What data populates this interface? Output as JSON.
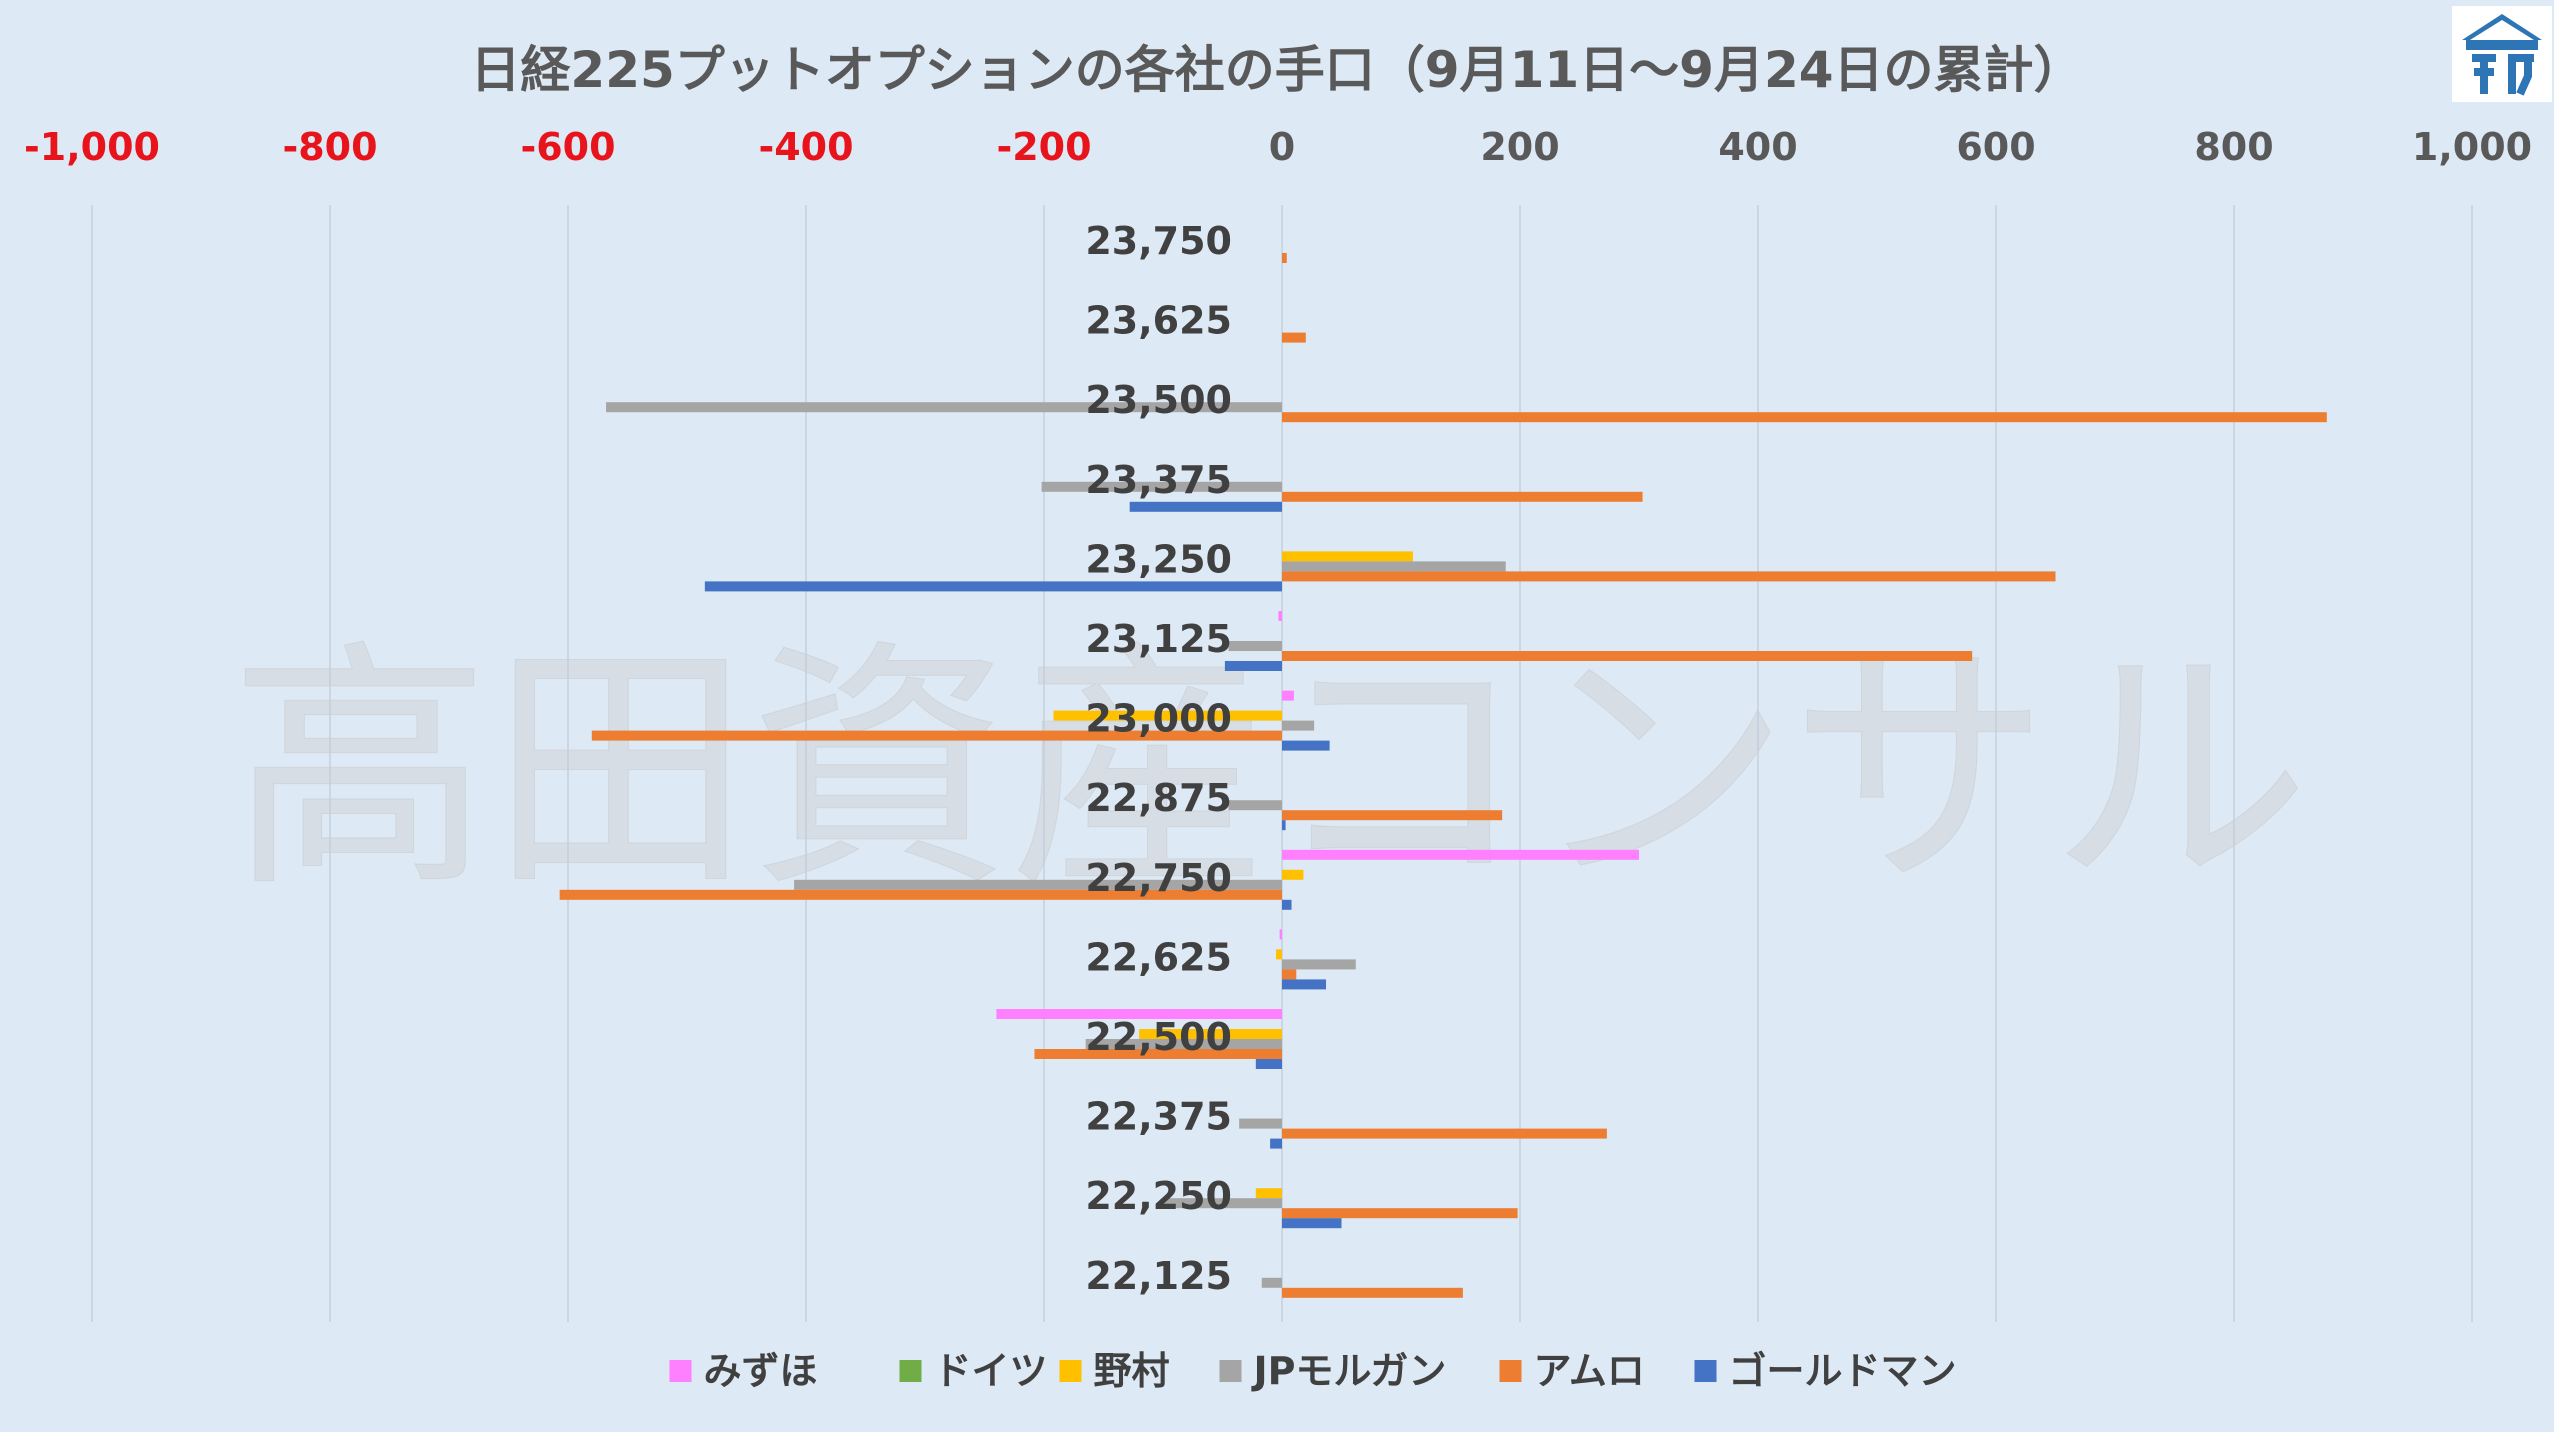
{
  "colors": {
    "mizuho": "#ff80ff",
    "deutsche": "#70ad47",
    "nomura": "#ffc000",
    "jpmorgan": "#a5a5a5",
    "amro": "#ed7d31",
    "goldman": "#4472c4",
    "negative_tick": "#e8141b",
    "positive_tick": "#595959",
    "logo": "#2e75b6"
  },
  "logo": {
    "icon": "building-roof-logo-icon"
  },
  "watermark": "高田資産コンサル",
  "chart_data": {
    "type": "bar",
    "orientation": "horizontal",
    "title": "日経225プットオプションの各社の手口（9月11日～9月24日の累計）",
    "xlim": [
      -1000,
      1000
    ],
    "x_ticks": [
      -1000,
      -800,
      -600,
      -400,
      -200,
      0,
      200,
      400,
      600,
      800,
      1000
    ],
    "x_tick_labels": [
      "-1,000",
      "-800",
      "-600",
      "-400",
      "-200",
      "0",
      "200",
      "400",
      "600",
      "800",
      "1,000"
    ],
    "grid": "vertical",
    "legend_position": "bottom",
    "categories": [
      "23,750",
      "23,625",
      "23,500",
      "23,375",
      "23,250",
      "23,125",
      "23,000",
      "22,875",
      "22,750",
      "22,625",
      "22,500",
      "22,375",
      "22,250",
      "22,125"
    ],
    "series": [
      {
        "name": "みずほ",
        "color_key": "mizuho",
        "values": [
          0,
          0,
          0,
          0,
          0,
          -3,
          10,
          0,
          300,
          -2,
          -240,
          0,
          0,
          0
        ]
      },
      {
        "name": "ドイツ",
        "color_key": "deutsche",
        "values": [
          0,
          0,
          0,
          0,
          0,
          0,
          0,
          0,
          0,
          0,
          0,
          0,
          0,
          0
        ]
      },
      {
        "name": "野村",
        "color_key": "nomura",
        "values": [
          0,
          0,
          0,
          0,
          110,
          0,
          -192,
          0,
          18,
          -5,
          -120,
          0,
          -22,
          0
        ]
      },
      {
        "name": "JPモルガン",
        "color_key": "jpmorgan",
        "values": [
          0,
          0,
          -568,
          -202,
          188,
          -45,
          27,
          -45,
          -410,
          62,
          -165,
          -36,
          -100,
          -17
        ]
      },
      {
        "name": "アムロ",
        "color_key": "amro",
        "values": [
          4,
          20,
          878,
          303,
          650,
          580,
          -580,
          185,
          -607,
          12,
          -208,
          273,
          198,
          152
        ]
      },
      {
        "name": "ゴールドマン",
        "color_key": "goldman",
        "values": [
          0,
          0,
          0,
          -128,
          -485,
          -48,
          40,
          3,
          8,
          37,
          -22,
          -10,
          50,
          0
        ]
      }
    ]
  }
}
